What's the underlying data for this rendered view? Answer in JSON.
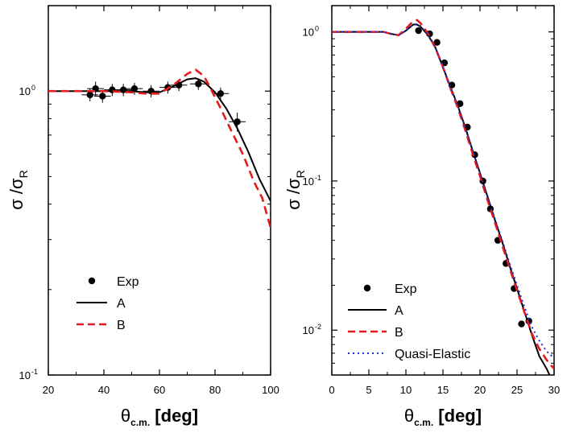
{
  "chart_data": [
    {
      "type": "scatter",
      "panel": "left",
      "scale_y": "log",
      "xlim": [
        20,
        100
      ],
      "ylim": [
        0.1,
        2.0
      ],
      "xticks": [
        20,
        40,
        60,
        80,
        100
      ],
      "xtick_labels": [
        "20",
        "40",
        "60",
        "80",
        "100"
      ],
      "yticks": [
        1,
        0.1
      ],
      "ytick_labels": [
        {
          "base": "10",
          "exp": "0"
        },
        {
          "base": "10",
          "exp": "-1"
        }
      ],
      "ylabel": {
        "sigma": "σ",
        "slash": "/σ",
        "sub": "R"
      },
      "xlabel": {
        "theta": "θ",
        "sub": "c.m.",
        "unit": "[deg]"
      },
      "legend": [
        "Exp",
        "A",
        "B"
      ],
      "series": [
        {
          "name": "Exp",
          "style": "points",
          "color": "#000000",
          "x": [
            35,
            37,
            39.5,
            43,
            47,
            51,
            57,
            63,
            67,
            74,
            82,
            88
          ],
          "y": [
            0.97,
            1.02,
            0.96,
            1.01,
            1.01,
            1.02,
            1.0,
            1.03,
            1.05,
            1.06,
            0.98,
            0.78
          ],
          "xerr": [
            3,
            3,
            3,
            3,
            3,
            3,
            3,
            3,
            3,
            3,
            3,
            3
          ],
          "yerr": [
            0.05,
            0.06,
            0.05,
            0.05,
            0.05,
            0.05,
            0.05,
            0.05,
            0.05,
            0.05,
            0.05,
            0.06
          ]
        },
        {
          "name": "A",
          "style": "solid",
          "color": "#000000",
          "x": [
            20,
            30,
            40,
            50,
            55,
            60,
            65,
            70,
            73,
            76,
            80,
            84,
            88,
            92,
            96,
            100
          ],
          "y": [
            1.0,
            1.0,
            1.0,
            1.0,
            0.99,
            0.99,
            1.04,
            1.1,
            1.11,
            1.08,
            0.99,
            0.87,
            0.74,
            0.61,
            0.49,
            0.41
          ]
        },
        {
          "name": "B",
          "style": "dashed",
          "color": "#e41a1c",
          "x": [
            20,
            30,
            40,
            50,
            55,
            60,
            65,
            70,
            73,
            76,
            78,
            82,
            86,
            90,
            94,
            97,
            100
          ],
          "y": [
            1.0,
            1.0,
            1.0,
            0.99,
            0.98,
            0.98,
            1.05,
            1.15,
            1.19,
            1.13,
            1.04,
            0.87,
            0.72,
            0.6,
            0.48,
            0.42,
            0.33
          ]
        }
      ]
    },
    {
      "type": "scatter",
      "panel": "right",
      "scale_y": "log",
      "xlim": [
        0,
        30
      ],
      "ylim": [
        0.005,
        1.5
      ],
      "xticks": [
        0,
        5,
        10,
        15,
        20,
        25,
        30
      ],
      "xtick_labels": [
        "0",
        "5",
        "10",
        "15",
        "20",
        "25",
        "30"
      ],
      "yticks": [
        1,
        0.1,
        0.01
      ],
      "ytick_labels": [
        {
          "base": "10",
          "exp": "0"
        },
        {
          "base": "10",
          "exp": "-1"
        },
        {
          "base": "10",
          "exp": "-2"
        }
      ],
      "ylabel": {
        "sigma": "σ",
        "slash": "/σ",
        "sub": "R"
      },
      "xlabel": {
        "theta": "θ",
        "sub": "c.m.",
        "unit": "[deg]"
      },
      "legend": [
        "Exp",
        "A",
        "B",
        "Quasi-Elastic"
      ],
      "series": [
        {
          "name": "Exp",
          "style": "points",
          "color": "#000000",
          "x": [
            11.7,
            13.2,
            14.2,
            15.2,
            16.2,
            17.3,
            18.3,
            19.3,
            20.4,
            21.4,
            22.4,
            23.5,
            24.6,
            25.6,
            26.6
          ],
          "y": [
            1.02,
            0.97,
            0.85,
            0.62,
            0.44,
            0.33,
            0.23,
            0.15,
            0.1,
            0.065,
            0.04,
            0.028,
            0.019,
            0.011,
            0.0115
          ]
        },
        {
          "name": "A",
          "style": "solid",
          "color": "#000000",
          "x": [
            0,
            2,
            4,
            6,
            7,
            8,
            9,
            10,
            11,
            11.5,
            12,
            13,
            14,
            15,
            16,
            17,
            18,
            19,
            20,
            21,
            22,
            23,
            24,
            25,
            26,
            27,
            28,
            29,
            30
          ],
          "y": [
            1.0,
            1.0,
            1.0,
            1.0,
            1.0,
            0.97,
            0.95,
            1.02,
            1.12,
            1.12,
            1.08,
            0.95,
            0.78,
            0.58,
            0.43,
            0.32,
            0.23,
            0.16,
            0.113,
            0.079,
            0.055,
            0.039,
            0.027,
            0.019,
            0.0133,
            0.0093,
            0.0067,
            0.0055,
            0.0043
          ]
        },
        {
          "name": "B",
          "style": "dashed",
          "color": "#e41a1c",
          "x": [
            0,
            2,
            4,
            6,
            7,
            8,
            9,
            10,
            11,
            11.5,
            12,
            13,
            14,
            15,
            16,
            17,
            18,
            19,
            20,
            21,
            22,
            23,
            24,
            25,
            26,
            27,
            28,
            29,
            30
          ],
          "y": [
            1.0,
            1.0,
            1.0,
            1.0,
            1.0,
            0.97,
            0.95,
            1.05,
            1.18,
            1.2,
            1.14,
            0.97,
            0.78,
            0.58,
            0.42,
            0.31,
            0.22,
            0.153,
            0.108,
            0.075,
            0.053,
            0.037,
            0.026,
            0.0185,
            0.0132,
            0.0095,
            0.0075,
            0.0063,
            0.0055
          ]
        },
        {
          "name": "Quasi-Elastic",
          "style": "dotted",
          "color": "#1f2fd1",
          "x": [
            0,
            2,
            4,
            6,
            7,
            8,
            9,
            10,
            11,
            11.5,
            12,
            13,
            14,
            15,
            16,
            17,
            18,
            19,
            20,
            21,
            22,
            23,
            24,
            25,
            26,
            27,
            28,
            29,
            30
          ],
          "y": [
            1.0,
            1.0,
            1.0,
            1.0,
            1.0,
            0.97,
            0.95,
            1.02,
            1.12,
            1.13,
            1.09,
            0.96,
            0.78,
            0.58,
            0.43,
            0.32,
            0.23,
            0.16,
            0.113,
            0.08,
            0.056,
            0.04,
            0.028,
            0.02,
            0.0143,
            0.0105,
            0.0085,
            0.0072,
            0.0065
          ]
        }
      ]
    }
  ]
}
